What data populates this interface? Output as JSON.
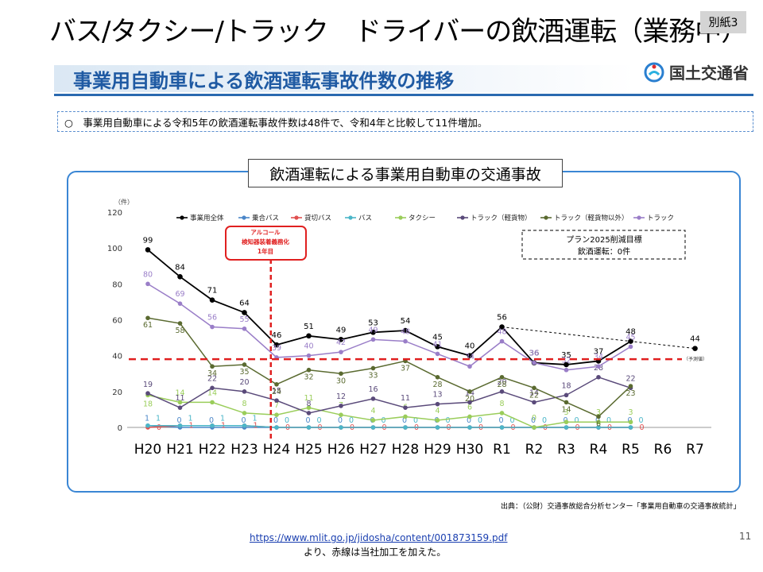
{
  "slide": {
    "title": "バス/タクシー/トラック　ドライバーの飲酒運転（業務中）",
    "tag": "別紙3",
    "banner_title": "事業用自動車による飲酒運転事故件数の推移",
    "ministry": "国土交通省",
    "summary": "○　事業用自動車による令和5年の飲酒運転事故件数は48件で、令和4年と比較して11件増加。",
    "panel_title": "飲酒運転による事業用自動車の交通事故",
    "source": "出典：（公財）交通事故総合分析センター「事業用自動車の交通事故統計」",
    "url": "https://www.mlit.go.jp/jidosha/content/001873159.pdf",
    "note": "より、赤線は当社加工を加えた。",
    "page_number": "11"
  },
  "colors": {
    "banner_text": "#1f5aa3",
    "panel_border": "#3a86d4",
    "red_marker": "#e02020"
  },
  "chart_data": {
    "type": "line",
    "yunit": "（件）",
    "ylim": [
      0,
      120
    ],
    "yticks": [
      0,
      20,
      40,
      60,
      80,
      100,
      120
    ],
    "categories": [
      "H20",
      "H21",
      "H22",
      "H23",
      "H24",
      "H25",
      "H26",
      "H27",
      "H28",
      "H29",
      "H30",
      "R1",
      "R2",
      "R3",
      "R4",
      "R5",
      "R6",
      "R7"
    ],
    "legend_position": "top",
    "series": [
      {
        "name": "事業用全体",
        "color": "#000000",
        "values": [
          99,
          84,
          71,
          64,
          46,
          51,
          49,
          53,
          54,
          45,
          40,
          56,
          36,
          35,
          37,
          48,
          null,
          44
        ]
      },
      {
        "name": "乗合バス",
        "color": "#4a86c8",
        "values": [
          1,
          0,
          0,
          0,
          0,
          0,
          0,
          0,
          0,
          0,
          0,
          0,
          0,
          0,
          0,
          0,
          null,
          null
        ]
      },
      {
        "name": "貸切バス",
        "color": "#e05050",
        "values": [
          0,
          1,
          1,
          1,
          0,
          0,
          0,
          0,
          0,
          0,
          0,
          0,
          0,
          0,
          0,
          0,
          null,
          null
        ]
      },
      {
        "name": "バス",
        "color": "#4bb6c8",
        "values": [
          1,
          1,
          1,
          1,
          0,
          0,
          0,
          0,
          0,
          0,
          0,
          0,
          0,
          0,
          0,
          0,
          null,
          null
        ]
      },
      {
        "name": "タクシー",
        "color": "#9acd5a",
        "values": [
          18,
          14,
          14,
          8,
          7,
          11,
          7,
          4,
          6,
          4,
          6,
          8,
          0,
          3,
          3,
          3,
          null,
          null
        ]
      },
      {
        "name": "トラック（軽貨物）",
        "color": "#5a4a7a",
        "values": [
          19,
          11,
          22,
          20,
          15,
          8,
          12,
          16,
          11,
          13,
          14,
          20,
          14,
          18,
          28,
          22,
          null,
          null
        ]
      },
      {
        "name": "トラック（軽貨物以外）",
        "color": "#5a6a30",
        "values": [
          61,
          58,
          34,
          35,
          24,
          32,
          30,
          33,
          37,
          28,
          20,
          28,
          22,
          14,
          6,
          23,
          null,
          null
        ]
      },
      {
        "name": "トラック",
        "color": "#9a7ec8",
        "values": [
          80,
          69,
          56,
          55,
          39,
          40,
          42,
          49,
          48,
          41,
          34,
          48,
          36,
          32,
          34,
          45,
          null,
          null
        ]
      }
    ],
    "dashed_target": {
      "from_category": "R1",
      "from_value": 56,
      "to_category": "R7",
      "to_value": 44
    },
    "forecast_label": "（予測値）",
    "target_box": {
      "line1": "プラン2025削減目標",
      "line2": "飲酒運転：0件"
    },
    "annotation": {
      "text1": "アルコール",
      "text2": "検知器装着義務化",
      "text3": "1年目",
      "category": "H24"
    },
    "red_threshold_value": 38
  }
}
